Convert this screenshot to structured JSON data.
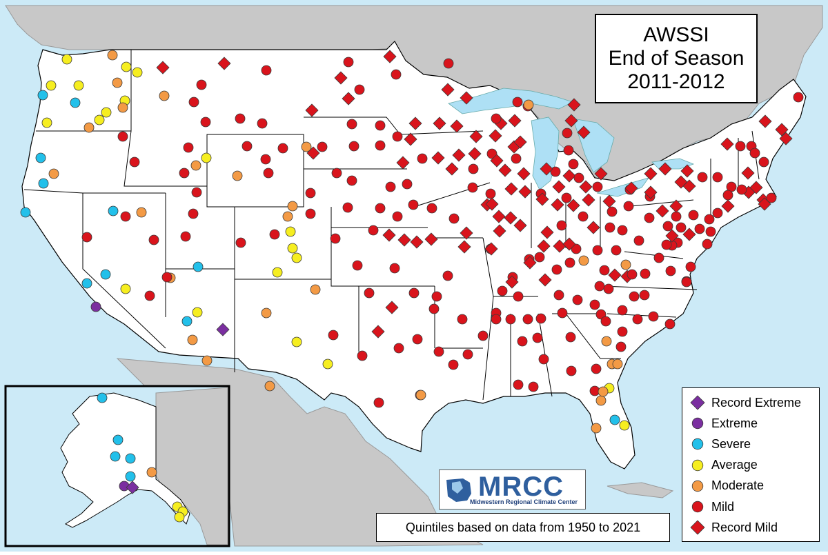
{
  "title": {
    "line1": "AWSSI",
    "line2": "End of Season",
    "line3": "2011-2012"
  },
  "footnote": "Quintiles based on data from 1950 to 2021",
  "logo": {
    "name": "MRCC",
    "subtitle": "Midwestern Regional Climate Center"
  },
  "colors": {
    "ocean": "#cceaf7",
    "land_other": "#c8c8c8",
    "land_us": "#ffffff",
    "lakes": "#aee0f5",
    "record_extreme": "#7b2fa0",
    "extreme": "#7b2fa0",
    "severe": "#22c0ea",
    "average": "#f6ee20",
    "moderate": "#f39a45",
    "mild": "#d9141c",
    "record_mild": "#d9141c"
  },
  "legend": [
    {
      "key": "record_extreme",
      "label": "Record Extreme",
      "shape": "diamond"
    },
    {
      "key": "extreme",
      "label": "Extreme",
      "shape": "circle"
    },
    {
      "key": "severe",
      "label": "Severe",
      "shape": "circle"
    },
    {
      "key": "average",
      "label": "Average",
      "shape": "circle"
    },
    {
      "key": "moderate",
      "label": "Moderate",
      "shape": "circle"
    },
    {
      "key": "mild",
      "label": "Mild",
      "shape": "circle"
    },
    {
      "key": "record_mild",
      "label": "Record Mild",
      "shape": "diamond"
    }
  ],
  "stations": [
    [
      "severe",
      62,
      138
    ],
    [
      "moderate",
      163,
      80
    ],
    [
      "average",
      97,
      86
    ],
    [
      "average",
      74,
      124
    ],
    [
      "average",
      114,
      124
    ],
    [
      "severe",
      109,
      149
    ],
    [
      "average",
      183,
      97
    ],
    [
      "average",
      199,
      105
    ],
    [
      "moderate",
      170,
      120
    ],
    [
      "average",
      181,
      146
    ],
    [
      "moderate",
      178,
      156
    ],
    [
      "average",
      154,
      163
    ],
    [
      "average",
      144,
      174
    ],
    [
      "moderate",
      129,
      185
    ],
    [
      "average",
      68,
      178
    ],
    [
      "severe",
      59,
      229
    ],
    [
      "moderate",
      78,
      252
    ],
    [
      "severe",
      63,
      266
    ],
    [
      "severe",
      37,
      308
    ],
    [
      "record_mild",
      236,
      98
    ],
    [
      "record_mild",
      325,
      92
    ],
    [
      "mild",
      386,
      102
    ],
    [
      "mild",
      292,
      123
    ],
    [
      "moderate",
      238,
      139
    ],
    [
      "mild",
      281,
      148
    ],
    [
      "mild",
      298,
      177
    ],
    [
      "mild",
      348,
      172
    ],
    [
      "mild",
      380,
      179
    ],
    [
      "mild",
      178,
      198
    ],
    [
      "mild",
      195,
      235
    ],
    [
      "mild",
      273,
      214
    ],
    [
      "moderate",
      284,
      240
    ],
    [
      "average",
      299,
      229
    ],
    [
      "mild",
      267,
      251
    ],
    [
      "moderate",
      344,
      255
    ],
    [
      "mild",
      358,
      212
    ],
    [
      "mild",
      385,
      231
    ],
    [
      "mild",
      410,
      215
    ],
    [
      "mild",
      389,
      251
    ],
    [
      "mild",
      285,
      279
    ],
    [
      "mild",
      280,
      310
    ],
    [
      "moderate",
      444,
      213
    ],
    [
      "record_mild",
      454,
      222
    ],
    [
      "severe",
      164,
      306
    ],
    [
      "mild",
      182,
      314
    ],
    [
      "moderate",
      205,
      308
    ],
    [
      "mild",
      126,
      344
    ],
    [
      "mild",
      223,
      348
    ],
    [
      "mild",
      269,
      343
    ],
    [
      "mild",
      349,
      352
    ],
    [
      "mild",
      398,
      340
    ],
    [
      "moderate",
      417,
      314
    ],
    [
      "moderate",
      424,
      299
    ],
    [
      "average",
      421,
      336
    ],
    [
      "average",
      424,
      360
    ],
    [
      "average",
      430,
      374
    ],
    [
      "mild",
      450,
      310
    ],
    [
      "severe",
      287,
      387
    ],
    [
      "average",
      402,
      395
    ],
    [
      "moderate",
      247,
      403
    ],
    [
      "mild",
      242,
      402
    ],
    [
      "severe",
      126,
      411
    ],
    [
      "severe",
      153,
      398
    ],
    [
      "average",
      182,
      419
    ],
    [
      "mild",
      217,
      429
    ],
    [
      "extreme",
      139,
      445
    ],
    [
      "average",
      286,
      453
    ],
    [
      "severe",
      271,
      466
    ],
    [
      "moderate",
      279,
      493
    ],
    [
      "record_extreme",
      323,
      478
    ],
    [
      "moderate",
      300,
      523
    ],
    [
      "moderate",
      386,
      454
    ],
    [
      "average",
      430,
      496
    ],
    [
      "moderate",
      391,
      560
    ],
    [
      "average",
      475,
      528
    ],
    [
      "moderate",
      457,
      420
    ],
    [
      "record_mild",
      565,
      82
    ],
    [
      "mild",
      505,
      90
    ],
    [
      "mild",
      574,
      108
    ],
    [
      "record_mild",
      494,
      113
    ],
    [
      "mild",
      521,
      130
    ],
    [
      "record_mild",
      505,
      143
    ],
    [
      "mild",
      650,
      92
    ],
    [
      "record_mild",
      649,
      130
    ],
    [
      "record_mild",
      676,
      142
    ],
    [
      "record_mild",
      452,
      160
    ],
    [
      "mild",
      510,
      180
    ],
    [
      "mild",
      551,
      182
    ],
    [
      "record_mild",
      602,
      179
    ],
    [
      "record_mild",
      637,
      179
    ],
    [
      "record_mild",
      662,
      183
    ],
    [
      "record_mild",
      690,
      198
    ],
    [
      "mild",
      467,
      213
    ],
    [
      "mild",
      513,
      212
    ],
    [
      "mild",
      551,
      211
    ],
    [
      "mild",
      576,
      198
    ],
    [
      "record_mild",
      595,
      202
    ],
    [
      "mild",
      612,
      230
    ],
    [
      "record_mild",
      584,
      236
    ],
    [
      "record_mild",
      635,
      229
    ],
    [
      "record_mild",
      655,
      245
    ],
    [
      "record_mild",
      665,
      225
    ],
    [
      "record_mild",
      688,
      223
    ],
    [
      "record_mild",
      718,
      197
    ],
    [
      "mild",
      686,
      245
    ],
    [
      "mild",
      450,
      280
    ],
    [
      "mild",
      488,
      251
    ],
    [
      "mild",
      510,
      262
    ],
    [
      "mild",
      566,
      271
    ],
    [
      "mild",
      590,
      267
    ],
    [
      "mild",
      504,
      301
    ],
    [
      "mild",
      551,
      302
    ],
    [
      "mild",
      576,
      314
    ],
    [
      "mild",
      599,
      297
    ],
    [
      "mild",
      626,
      302
    ],
    [
      "mild",
      658,
      317
    ],
    [
      "mild",
      685,
      272
    ],
    [
      "mild",
      711,
      281
    ],
    [
      "record_mild",
      706,
      297
    ],
    [
      "mild",
      486,
      346
    ],
    [
      "mild",
      541,
      334
    ],
    [
      "record_mild",
      564,
      341
    ],
    [
      "record_mild",
      586,
      348
    ],
    [
      "record_mild",
      604,
      351
    ],
    [
      "record_mild",
      625,
      347
    ],
    [
      "record_mild",
      676,
      338
    ],
    [
      "record_mild",
      673,
      358
    ],
    [
      "mild",
      518,
      385
    ],
    [
      "mild",
      572,
      389
    ],
    [
      "mild",
      649,
      400
    ],
    [
      "mild",
      711,
      361
    ],
    [
      "mild",
      535,
      425
    ],
    [
      "record_mild",
      568,
      446
    ],
    [
      "mild",
      600,
      425
    ],
    [
      "mild",
      633,
      430
    ],
    [
      "mild",
      629,
      448
    ],
    [
      "mild",
      670,
      463
    ],
    [
      "record_mild",
      548,
      481
    ],
    [
      "mild",
      483,
      486
    ],
    [
      "mild",
      578,
      505
    ],
    [
      "mild",
      525,
      516
    ],
    [
      "mild",
      636,
      510
    ],
    [
      "mild",
      605,
      492
    ],
    [
      "mild",
      700,
      487
    ],
    [
      "mild",
      719,
      454
    ],
    [
      "mild",
      657,
      529
    ],
    [
      "mild",
      678,
      514
    ],
    [
      "mild",
      609,
      573
    ],
    [
      "mild",
      549,
      584
    ],
    [
      "moderate",
      610,
      573
    ],
    [
      "record_mild",
      726,
      179
    ],
    [
      "mild",
      719,
      172
    ],
    [
      "record_mild",
      746,
      175
    ],
    [
      "mild",
      750,
      148
    ],
    [
      "mild",
      765,
      154
    ],
    [
      "record_mild",
      745,
      213
    ],
    [
      "record_mild",
      754,
      206
    ],
    [
      "mild",
      713,
      223
    ],
    [
      "record_mild",
      720,
      233
    ],
    [
      "record_mild",
      732,
      247
    ],
    [
      "record_mild",
      759,
      252
    ],
    [
      "mild",
      748,
      230
    ],
    [
      "record_mild",
      741,
      274
    ],
    [
      "record_mild",
      761,
      278
    ],
    [
      "mild",
      784,
      281
    ],
    [
      "record_mild",
      786,
      289
    ],
    [
      "record_mild",
      713,
      296
    ],
    [
      "record_mild",
      723,
      314
    ],
    [
      "record_mild",
      740,
      316
    ],
    [
      "record_mild",
      754,
      327
    ],
    [
      "record_mild",
      724,
      335
    ],
    [
      "record_mild",
      793,
      337
    ],
    [
      "record_mild",
      788,
      357
    ],
    [
      "record_mild",
      712,
      361
    ],
    [
      "mild",
      767,
      376
    ],
    [
      "record_mild",
      768,
      381
    ],
    [
      "mild",
      743,
      402
    ],
    [
      "record_mild",
      742,
      409
    ],
    [
      "record_mild",
      790,
      406
    ],
    [
      "mild",
      728,
      422
    ],
    [
      "record_mild",
      811,
      357
    ],
    [
      "mild",
      782,
      373
    ],
    [
      "mild",
      807,
      391
    ],
    [
      "mild",
      835,
      361
    ],
    [
      "record_mild",
      825,
      354
    ],
    [
      "mild",
      814,
      327
    ],
    [
      "mild",
      821,
      287
    ],
    [
      "record_mild",
      831,
      298
    ],
    [
      "record_mild",
      825,
      255
    ],
    [
      "record_mild",
      810,
      271
    ],
    [
      "mild",
      805,
      249
    ],
    [
      "record_mild",
      792,
      245
    ],
    [
      "record_mild",
      808,
      297
    ],
    [
      "mild",
      824,
      218
    ],
    [
      "mild",
      822,
      193
    ],
    [
      "record_mild",
      828,
      175
    ],
    [
      "record_mild",
      846,
      192
    ],
    [
      "record_mild",
      832,
      152
    ],
    [
      "mild",
      831,
      238
    ],
    [
      "mild",
      839,
      258
    ],
    [
      "record_mild",
      849,
      271
    ],
    [
      "record_mild",
      871,
      252
    ],
    [
      "record_mild",
      853,
      290
    ],
    [
      "mild",
      866,
      271
    ],
    [
      "record_mild",
      860,
      330
    ],
    [
      "mild",
      845,
      314
    ],
    [
      "record_mild",
      883,
      292
    ],
    [
      "mild",
      887,
      307
    ],
    [
      "mild",
      884,
      330
    ],
    [
      "mild",
      866,
      363
    ],
    [
      "mild",
      893,
      363
    ],
    [
      "moderate",
      846,
      378
    ],
    [
      "mild",
      826,
      381
    ],
    [
      "mild",
      876,
      392
    ],
    [
      "moderate",
      907,
      384
    ],
    [
      "record_mild",
      891,
      399
    ],
    [
      "record_mild",
      909,
      401
    ],
    [
      "mild",
      916,
      398
    ],
    [
      "mild",
      935,
      397
    ],
    [
      "mild",
      869,
      415
    ],
    [
      "mild",
      837,
      435
    ],
    [
      "mild",
      862,
      442
    ],
    [
      "mild",
      882,
      419
    ],
    [
      "mild",
      810,
      428
    ],
    [
      "mild",
      751,
      430
    ],
    [
      "mild",
      719,
      463
    ],
    [
      "mild",
      740,
      463
    ],
    [
      "mild",
      765,
      463
    ],
    [
      "mild",
      784,
      462
    ],
    [
      "mild",
      815,
      454
    ],
    [
      "mild",
      871,
      456
    ],
    [
      "mild",
      878,
      466
    ],
    [
      "mild",
      902,
      450
    ],
    [
      "mild",
      919,
      430
    ],
    [
      "mild",
      934,
      428
    ],
    [
      "mild",
      924,
      463
    ],
    [
      "mild",
      947,
      459
    ],
    [
      "mild",
      971,
      470
    ],
    [
      "mild",
      902,
      481
    ],
    [
      "moderate",
      879,
      495
    ],
    [
      "mild",
      900,
      503
    ],
    [
      "mild",
      827,
      489
    ],
    [
      "mild",
      779,
      490
    ],
    [
      "mild",
      757,
      495
    ],
    [
      "mild",
      788,
      521
    ],
    [
      "mild",
      828,
      538
    ],
    [
      "mild",
      864,
      535
    ],
    [
      "moderate",
      887,
      528
    ],
    [
      "moderate",
      895,
      528
    ],
    [
      "mild",
      751,
      558
    ],
    [
      "mild",
      773,
      561
    ],
    [
      "mild",
      862,
      567
    ],
    [
      "average",
      883,
      563
    ],
    [
      "moderate",
      871,
      581
    ],
    [
      "moderate",
      874,
      568
    ],
    [
      "severe",
      891,
      609
    ],
    [
      "average",
      905,
      617
    ],
    [
      "moderate",
      864,
      621
    ],
    [
      "mild",
      913,
      275
    ],
    [
      "record_mild",
      915,
      273
    ],
    [
      "record_mild",
      943,
      252
    ],
    [
      "record_mild",
      964,
      245
    ],
    [
      "record_mild",
      996,
      248
    ],
    [
      "record_mild",
      987,
      264
    ],
    [
      "record_mild",
      999,
      270
    ],
    [
      "mild",
      1018,
      257
    ],
    [
      "mild",
      1040,
      257
    ],
    [
      "mild",
      1073,
      212
    ],
    [
      "record_mild",
      1054,
      209
    ],
    [
      "mild",
      1089,
      212
    ],
    [
      "mild",
      1094,
      222
    ],
    [
      "record_mild",
      1109,
      176
    ],
    [
      "record_mild",
      1133,
      188
    ],
    [
      "record_mild",
      1139,
      201
    ],
    [
      "mild",
      1157,
      141
    ],
    [
      "mild",
      1107,
      235
    ],
    [
      "record_mild",
      1084,
      251
    ],
    [
      "record_mild",
      1085,
      279
    ],
    [
      "record_mild",
      1096,
      272
    ],
    [
      "mild",
      1075,
      275
    ],
    [
      "mild",
      1060,
      271
    ],
    [
      "record_mild",
      1106,
      290
    ],
    [
      "mild",
      1118,
      287
    ],
    [
      "record_mild",
      1108,
      296
    ],
    [
      "mild",
      1055,
      283
    ],
    [
      "record_mild",
      1055,
      299
    ],
    [
      "mild",
      1040,
      309
    ],
    [
      "mild",
      1028,
      318
    ],
    [
      "mild",
      1014,
      332
    ],
    [
      "mild",
      1030,
      336
    ],
    [
      "mild",
      1025,
      354
    ],
    [
      "record_mild",
      999,
      340
    ],
    [
      "mild",
      982,
      352
    ],
    [
      "mild",
      974,
      356
    ],
    [
      "record_mild",
      974,
      342
    ],
    [
      "mild",
      968,
      328
    ],
    [
      "mild",
      987,
      330
    ],
    [
      "mild",
      980,
      314
    ],
    [
      "mild",
      1005,
      312
    ],
    [
      "record_mild",
      980,
      299
    ],
    [
      "record_mild",
      960,
      306
    ],
    [
      "mild",
      941,
      316
    ],
    [
      "mild",
      942,
      285
    ],
    [
      "record_mild",
      943,
      279
    ],
    [
      "mild",
      911,
      299
    ],
    [
      "mild",
      926,
      349
    ],
    [
      "mild",
      955,
      374
    ],
    [
      "mild",
      972,
      393
    ],
    [
      "mild",
      995,
      408
    ],
    [
      "mild",
      1001,
      387
    ],
    [
      "mild",
      995,
      409
    ],
    [
      "mild",
      966,
      355
    ],
    [
      "mild",
      902,
      334
    ],
    [
      "moderate",
      766,
      152
    ]
  ],
  "alaska_stations": [
    [
      "severe",
      148,
      577
    ],
    [
      "severe",
      171,
      638
    ],
    [
      "severe",
      167,
      662
    ],
    [
      "severe",
      189,
      665
    ],
    [
      "severe",
      189,
      691
    ],
    [
      "moderate",
      220,
      685
    ],
    [
      "extreme",
      180,
      705
    ],
    [
      "record_extreme",
      192,
      707
    ],
    [
      "average",
      257,
      735
    ],
    [
      "average",
      265,
      742
    ],
    [
      "average",
      260,
      750
    ]
  ]
}
